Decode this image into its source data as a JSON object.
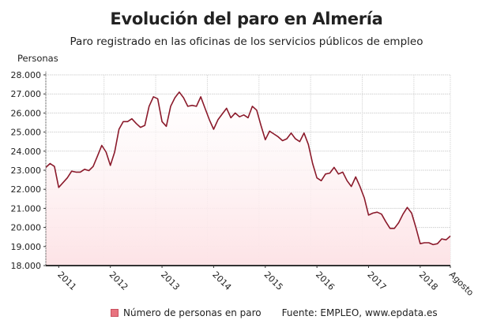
{
  "chart_data": {
    "type": "area",
    "title": "Evolución del paro en Almería",
    "subtitle": "Paro registrado en las oficinas de los servicios públicos de empleo",
    "ylabel": "Personas",
    "xlabel": "",
    "ylim": [
      18000,
      28000
    ],
    "yticks": [
      18000,
      19000,
      20000,
      21000,
      22000,
      23000,
      24000,
      25000,
      26000,
      27000,
      28000
    ],
    "ytick_labels": [
      "18.000",
      "19.000",
      "20.000",
      "21.000",
      "22.000",
      "23.000",
      "24.000",
      "25.000",
      "26.000",
      "27.000",
      "28.000"
    ],
    "x_start": "2010-10",
    "x_end": "2018-08",
    "xtick_labels": [
      {
        "label": "2011",
        "month_index": 3
      },
      {
        "label": "2012",
        "month_index": 15
      },
      {
        "label": "2013",
        "month_index": 27
      },
      {
        "label": "2014",
        "month_index": 39
      },
      {
        "label": "2015",
        "month_index": 51
      },
      {
        "label": "2016",
        "month_index": 63
      },
      {
        "label": "2017",
        "month_index": 75
      },
      {
        "label": "2018",
        "month_index": 87
      },
      {
        "label": "Agosto",
        "month_index": 94
      }
    ],
    "grid": true,
    "line_color": "#8b1a2b",
    "fill_color": "#fde3e6",
    "series": [
      {
        "name": "Número de personas en paro",
        "values": [
          23150,
          23350,
          23200,
          22100,
          22350,
          22600,
          22950,
          22900,
          22900,
          23050,
          22980,
          23200,
          23750,
          24300,
          23950,
          23250,
          23950,
          25150,
          25550,
          25550,
          25700,
          25450,
          25250,
          25350,
          26350,
          26850,
          26750,
          25550,
          25300,
          26350,
          26800,
          27100,
          26800,
          26350,
          26400,
          26350,
          26850,
          26250,
          25650,
          25150,
          25650,
          25950,
          26250,
          25750,
          26000,
          25800,
          25900,
          25750,
          26350,
          26150,
          25350,
          24600,
          25050,
          24900,
          24750,
          24550,
          24650,
          24950,
          24650,
          24500,
          24950,
          24350,
          23350,
          22600,
          22450,
          22800,
          22850,
          23150,
          22800,
          22900,
          22450,
          22150,
          22650,
          22150,
          21550,
          20650,
          20750,
          20800,
          20700,
          20300,
          19950,
          19950,
          20250,
          20700,
          21050,
          20750,
          20000,
          19150,
          19200,
          19200,
          19100,
          19150,
          19400,
          19350,
          19550
        ]
      }
    ],
    "legend": {
      "position": "bottom",
      "entries": [
        "Número de personas en paro"
      ]
    },
    "source": "Fuente: EMPLEO, www.epdata.es"
  }
}
